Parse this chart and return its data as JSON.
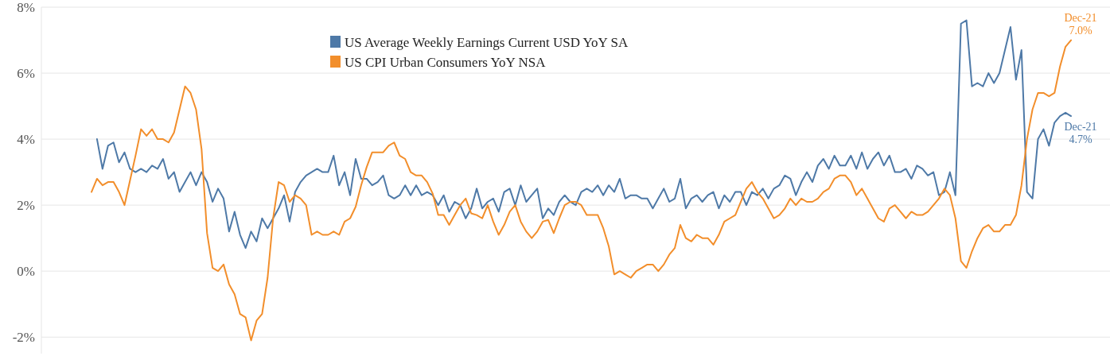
{
  "chart_data": {
    "type": "line",
    "categories": [
      null,
      null,
      null,
      null,
      null,
      null,
      null,
      null,
      null,
      null,
      null,
      null,
      null,
      null,
      null,
      null,
      null,
      null,
      null,
      null,
      null,
      null,
      null,
      null,
      null,
      null,
      null,
      null,
      null,
      null,
      null,
      null,
      null,
      null,
      null,
      null,
      null,
      null,
      null,
      null,
      null,
      null,
      null,
      null,
      null,
      null,
      null,
      null,
      null,
      null,
      null,
      null,
      null,
      null,
      null,
      null,
      null,
      null,
      null,
      null,
      null,
      null,
      null,
      null,
      null,
      null,
      null,
      null,
      null,
      null,
      null,
      null,
      null,
      null,
      null,
      null,
      null,
      null,
      null,
      null,
      null,
      null,
      null,
      null,
      null,
      null,
      null,
      null,
      null,
      null,
      null,
      null,
      null,
      null,
      null,
      null,
      null,
      null,
      null,
      null,
      null,
      null,
      null,
      null,
      null,
      null,
      null,
      null,
      null,
      null,
      null,
      null,
      null,
      null,
      null,
      null,
      null,
      null,
      null,
      null,
      null,
      null,
      null,
      null,
      null,
      null,
      null,
      null,
      null,
      null,
      null,
      null,
      null,
      null,
      null,
      null,
      null,
      null,
      null,
      null,
      null,
      null,
      null,
      null,
      null,
      null,
      null,
      null,
      null,
      null,
      null,
      null,
      null,
      null,
      null,
      null,
      null,
      null,
      null,
      null,
      null,
      null,
      null,
      null,
      null,
      null,
      null,
      null,
      null,
      null,
      null,
      null,
      null,
      null,
      null,
      null,
      null,
      null,
      null
    ],
    "series": [
      {
        "name": "US Average Weekly Earnings Current USD YoY SA",
        "color": "#4e79a7",
        "values": [
          null,
          4.0,
          3.1,
          3.8,
          3.9,
          3.3,
          3.6,
          3.1,
          3.0,
          3.1,
          3.0,
          3.2,
          3.1,
          3.4,
          2.8,
          3.0,
          2.4,
          2.7,
          3.0,
          2.6,
          3.0,
          2.7,
          2.1,
          2.5,
          2.2,
          1.2,
          1.8,
          1.1,
          0.7,
          1.2,
          0.9,
          1.6,
          1.3,
          1.6,
          1.9,
          2.3,
          1.5,
          2.4,
          2.7,
          2.9,
          3.0,
          3.1,
          3.0,
          3.0,
          3.5,
          2.6,
          3.0,
          2.3,
          3.4,
          2.8,
          2.8,
          2.6,
          2.7,
          2.9,
          2.3,
          2.2,
          2.3,
          2.6,
          2.3,
          2.6,
          2.3,
          2.4,
          2.3,
          2.0,
          2.3,
          1.8,
          2.1,
          2.0,
          1.6,
          1.9,
          2.5,
          1.9,
          2.1,
          2.2,
          1.8,
          2.4,
          2.5,
          2.0,
          2.6,
          2.1,
          2.3,
          2.5,
          1.6,
          1.9,
          1.7,
          2.1,
          2.3,
          2.1,
          2.0,
          2.4,
          2.5,
          2.4,
          2.6,
          2.3,
          2.6,
          2.4,
          2.8,
          2.2,
          2.3,
          2.3,
          2.2,
          2.2,
          1.9,
          2.2,
          2.5,
          2.1,
          2.2,
          2.8,
          1.9,
          2.2,
          2.3,
          2.1,
          2.3,
          2.4,
          1.9,
          2.3,
          2.1,
          2.4,
          2.4,
          2.0,
          2.4,
          2.3,
          2.5,
          2.2,
          2.5,
          2.6,
          2.9,
          2.8,
          2.3,
          2.7,
          3.0,
          2.7,
          3.2,
          3.4,
          3.1,
          3.5,
          3.2,
          3.2,
          3.5,
          3.1,
          3.6,
          3.1,
          3.4,
          3.6,
          3.2,
          3.5,
          3.0,
          3.0,
          3.1,
          2.8,
          3.2,
          3.1,
          2.9,
          3.0,
          2.3,
          2.4,
          3.0,
          2.3,
          7.5,
          7.6,
          5.6,
          5.7,
          5.6,
          6.0,
          5.7,
          6.0,
          6.7,
          7.4,
          5.8,
          6.7,
          2.4,
          2.2,
          4.0,
          4.3,
          3.8,
          4.5,
          4.7,
          4.8,
          4.7
        ]
      },
      {
        "name": "US CPI Urban Consumers YoY NSA",
        "color": "#f28e2b",
        "values": [
          2.4,
          2.8,
          2.6,
          2.7,
          2.7,
          2.4,
          2.0,
          2.75,
          3.5,
          4.3,
          4.1,
          4.3,
          4.0,
          4.0,
          3.9,
          4.2,
          4.9,
          5.6,
          5.4,
          4.9,
          3.7,
          1.15,
          0.1,
          0.0,
          0.2,
          -0.4,
          -0.7,
          -1.3,
          -1.4,
          -2.1,
          -1.5,
          -1.3,
          -0.2,
          1.6,
          2.7,
          2.6,
          2.1,
          2.3,
          2.2,
          2.0,
          1.1,
          1.2,
          1.1,
          1.1,
          1.2,
          1.1,
          1.5,
          1.6,
          1.95,
          2.6,
          3.15,
          3.6,
          3.6,
          3.6,
          3.8,
          3.9,
          3.5,
          3.4,
          3.0,
          2.9,
          2.9,
          2.7,
          2.35,
          1.7,
          1.7,
          1.4,
          1.7,
          2.0,
          2.2,
          1.75,
          1.7,
          1.6,
          2.0,
          1.5,
          1.1,
          1.4,
          1.8,
          2.0,
          1.5,
          1.2,
          1.0,
          1.2,
          1.5,
          1.55,
          1.15,
          1.6,
          2.0,
          2.1,
          2.1,
          2.0,
          1.7,
          1.7,
          1.7,
          1.3,
          0.75,
          -0.1,
          0.0,
          -0.1,
          -0.2,
          0.0,
          0.1,
          0.2,
          0.2,
          0.0,
          0.2,
          0.5,
          0.7,
          1.4,
          1.0,
          0.9,
          1.1,
          1.0,
          1.0,
          0.8,
          1.1,
          1.5,
          1.6,
          1.7,
          2.1,
          2.5,
          2.7,
          2.4,
          2.2,
          1.9,
          1.6,
          1.7,
          1.9,
          2.2,
          2.0,
          2.2,
          2.1,
          2.1,
          2.2,
          2.4,
          2.5,
          2.8,
          2.9,
          2.9,
          2.7,
          2.3,
          2.5,
          2.2,
          1.9,
          1.6,
          1.5,
          1.9,
          2.0,
          1.8,
          1.6,
          1.8,
          1.7,
          1.7,
          1.8,
          2.0,
          2.2,
          2.5,
          2.3,
          1.6,
          0.3,
          0.1,
          0.6,
          1.0,
          1.3,
          1.4,
          1.2,
          1.2,
          1.4,
          1.4,
          1.7,
          2.6,
          4.0,
          4.9,
          5.4,
          5.4,
          5.3,
          5.4,
          6.2,
          6.8,
          7.0
        ]
      }
    ],
    "ylim": [
      -2.5,
      8
    ],
    "yticks": [
      {
        "value": -2,
        "label": "-2%"
      },
      {
        "value": 0,
        "label": "0%"
      },
      {
        "value": 2,
        "label": "2%"
      },
      {
        "value": 4,
        "label": "4%"
      },
      {
        "value": 6,
        "label": "6%"
      },
      {
        "value": 8,
        "label": "8%"
      }
    ],
    "grid": "y",
    "legend": "top",
    "marker": "none",
    "line_style": "solid",
    "tick_labels": "y",
    "annotations": [
      "Dec-21\n7.0%",
      "Dec-21\n4.7%"
    ]
  }
}
